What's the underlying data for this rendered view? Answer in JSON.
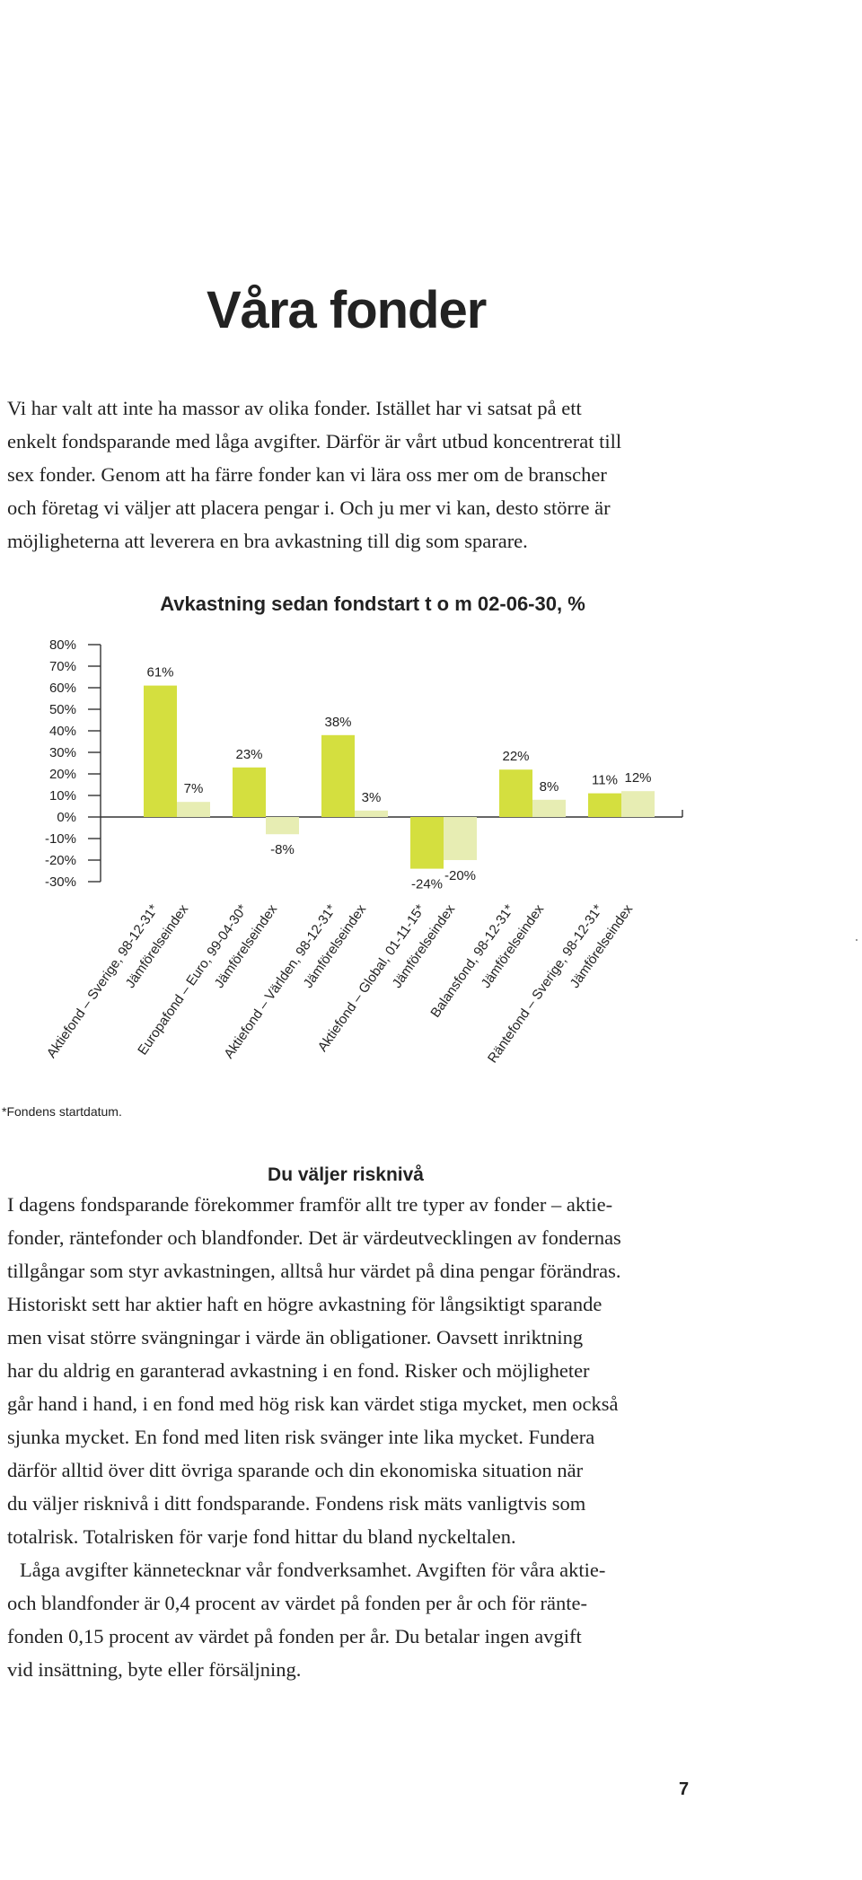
{
  "page": {
    "title": "Våra fonder",
    "intro_lines": [
      "Vi har valt att inte ha massor av olika fonder. Istället har vi satsat på ett",
      "enkelt fondsparande med låga avgifter. Därför är vårt utbud koncentrerat till",
      "sex fonder. Genom att ha färre fonder kan vi lära oss mer om de branscher",
      "och företag vi väljer att placera pengar i. Och ju mer vi kan, desto större är",
      "möjligheterna att leverera en bra avkastning till dig som sparare."
    ],
    "footnote": "*Fondens startdatum.",
    "section_heading": "Du väljer risknivå",
    "body_lines": [
      "I dagens fondsparande förekommer framför allt tre typer av fonder – aktie-",
      "fonder, räntefonder och blandfonder. Det är värdeutvecklingen av fondernas",
      "tillgångar som styr avkastningen, alltså hur värdet på dina pengar förändras.",
      "Historiskt sett har aktier haft en högre avkastning för långsiktigt sparande",
      "men visat större svängningar i värde än obligationer. Oavsett inriktning",
      "har du aldrig en garanterad avkastning i en fond. Risker och möjligheter",
      "går hand i hand, i en fond med hög risk kan värdet stiga mycket, men också",
      "sjunka mycket. En fond med liten risk svänger inte lika mycket. Fundera",
      "därför alltid över ditt övriga sparande och din ekonomiska situation när",
      "du väljer risknivå i ditt fondsparande. Fondens risk mäts vanligtvis som",
      "totalrisk. Totalrisken för varje fond hittar du bland nyckeltalen."
    ],
    "body_lines_2": [
      "Låga avgifter kännetecknar vår fondverksamhet. Avgiften för våra aktie-",
      "och blandfonder är 0,4 procent av värdet på fonden per år och för ränte-",
      "fonden 0,15 procent av värdet på fonden per år. Du betalar ingen avgift",
      "vid insättning, byte eller försäljning."
    ],
    "page_number": "7"
  },
  "chart_data": {
    "type": "bar",
    "title": "Avkastning sedan fondstart t o m 02-06-30, %",
    "ylim": [
      -30,
      80
    ],
    "yticks": [
      "80%",
      "70%",
      "60%",
      "50%",
      "40%",
      "30%",
      "20%",
      "10%",
      "0%",
      "-10%",
      "-20%",
      "-30%"
    ],
    "categories": [
      "Aktiefond – Sverige, 98-12-31*",
      "Europafond – Euro, 99-04-30*",
      "Aktiefond – Världen, 98-12-31*",
      "Aktiefond – Global, 01-11-15*",
      "Balansfond, 98-12-31*",
      "Räntefond – Sverige, 98-12-31*"
    ],
    "comparison_label": "Jämförelseindex",
    "series": [
      {
        "values": [
          61,
          23,
          38,
          -24,
          22,
          11
        ],
        "labels": [
          "61%",
          "23%",
          "38%",
          "-24%",
          "22%",
          "11%"
        ],
        "color": "#d4df3f"
      },
      {
        "values": [
          7,
          -8,
          3,
          -20,
          8,
          12
        ],
        "labels": [
          "7%",
          "-8%",
          "3%",
          "-20%",
          "8%",
          "12%"
        ],
        "color": "#e7edb3"
      }
    ],
    "grid": false,
    "legend": "none"
  }
}
